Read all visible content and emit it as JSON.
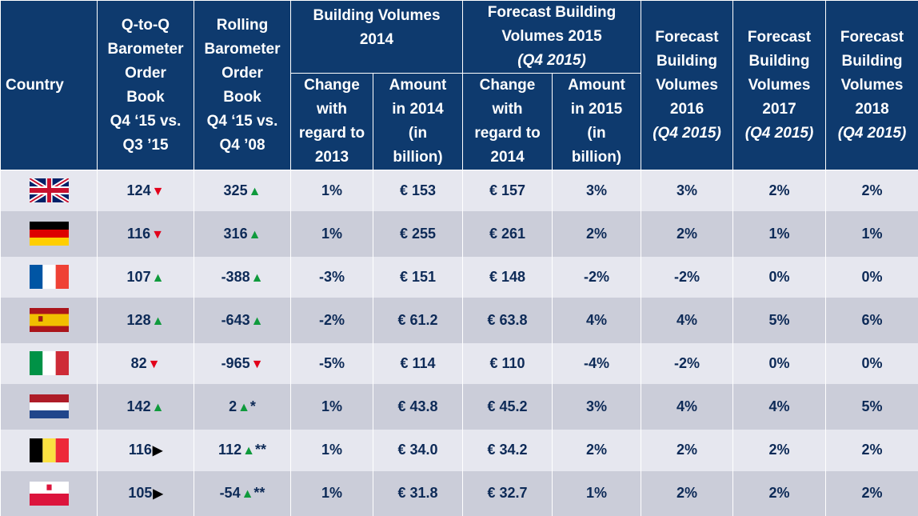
{
  "header": {
    "country": "Country",
    "qq": [
      "Q-to-Q",
      "Barometer",
      "Order",
      "Book",
      "Q4 ‘15 vs.",
      "Q3 ’15"
    ],
    "rolling": [
      "Rolling",
      "Barometer",
      "Order",
      "Book",
      "Q4 ‘15 vs.",
      "Q4 ’08"
    ],
    "bv2014": [
      "Building Volumes",
      "2014"
    ],
    "fbv2015": [
      "Forecast Building",
      "Volumes 2015"
    ],
    "fbv2015_sub": "(Q4 2015)",
    "change2013": [
      "Change",
      "with",
      "regard to",
      "2013"
    ],
    "amount2014": [
      "Amount",
      "in 2014",
      "(in",
      "billion)"
    ],
    "change2014": [
      "Change",
      "with",
      "regard to",
      "2014"
    ],
    "amount2015": [
      "Amount",
      "in 2015",
      "(in",
      "billion)"
    ],
    "f2016": [
      "Forecast",
      "Building",
      "Volumes",
      "2016"
    ],
    "f2017": [
      "Forecast",
      "Building",
      "Volumes",
      "2017"
    ],
    "f2018": [
      "Forecast",
      "Building",
      "Volumes",
      "2018"
    ],
    "q4_2015": "(Q4 2015)"
  },
  "rows": [
    {
      "flag": "uk-flag-icon",
      "qq": "124",
      "qq_arrow": "▼",
      "qq_dir": "down",
      "roll": "325",
      "roll_arrow": "▲",
      "roll_dir": "up",
      "roll_note": "",
      "c13": "1%",
      "a14": "€ 153",
      "c14": "€ 157",
      "a15": "3%",
      "f16": "3%",
      "f17": "2%",
      "f18": "2%"
    },
    {
      "flag": "germany-flag-icon",
      "qq": "116",
      "qq_arrow": "▼",
      "qq_dir": "down",
      "roll": "316",
      "roll_arrow": "▲",
      "roll_dir": "up",
      "roll_note": "",
      "c13": "1%",
      "a14": "€ 255",
      "c14": "€  261",
      "a15": "2%",
      "f16": "2%",
      "f17": "1%",
      "f18": "1%"
    },
    {
      "flag": "france-flag-icon",
      "qq": "107",
      "qq_arrow": "▲",
      "qq_dir": "up",
      "roll": "-388",
      "roll_arrow": "▲",
      "roll_dir": "up",
      "roll_note": "",
      "c13": "-3%",
      "a14": "€ 151",
      "c14": "€ 148",
      "a15": "-2%",
      "f16": "-2%",
      "f17": "0%",
      "f18": "0%"
    },
    {
      "flag": "spain-flag-icon",
      "qq": "128",
      "qq_arrow": "▲",
      "qq_dir": "up",
      "roll": "-643",
      "roll_arrow": "▲",
      "roll_dir": "up",
      "roll_note": "",
      "c13": "-2%",
      "a14": "€ 61.2",
      "c14": "€ 63.8",
      "a15": "4%",
      "f16": "4%",
      "f17": "5%",
      "f18": "6%"
    },
    {
      "flag": "italy-flag-icon",
      "qq": "82",
      "qq_arrow": "▼",
      "qq_dir": "down",
      "roll": "-965",
      "roll_arrow": "▼",
      "roll_dir": "down",
      "roll_note": "",
      "c13": "-5%",
      "a14": "€ 114",
      "c14": "€ 110",
      "a15": "-4%",
      "f16": "-2%",
      "f17": "0%",
      "f18": "0%"
    },
    {
      "flag": "netherlands-flag-icon",
      "qq": "142",
      "qq_arrow": "▲",
      "qq_dir": "up",
      "roll": "2",
      "roll_arrow": "▲",
      "roll_dir": "up",
      "roll_note": "*",
      "c13": "1%",
      "a14": "€ 43.8",
      "c14": "€ 45.2",
      "a15": "3%",
      "f16": "4%",
      "f17": "4%",
      "f18": "5%"
    },
    {
      "flag": "belgium-flag-icon",
      "qq": "116",
      "qq_arrow": "▶",
      "qq_dir": "right",
      "roll": "112",
      "roll_arrow": "▲",
      "roll_dir": "up",
      "roll_note": "**",
      "c13": "1%",
      "a14": "€ 34.0",
      "c14": "€ 34.2",
      "a15": "2%",
      "f16": "2%",
      "f17": "2%",
      "f18": "2%"
    },
    {
      "flag": "poland-flag-icon",
      "qq": "105",
      "qq_arrow": "▶",
      "qq_dir": "right",
      "roll": "-54",
      "roll_arrow": "▲",
      "roll_dir": "up",
      "roll_note": "**",
      "c13": "1%",
      "a14": "€ 31.8",
      "c14": "€ 32.7",
      "a15": "1%",
      "f16": "2%",
      "f17": "2%",
      "f18": "2%"
    }
  ],
  "colors": {
    "header_bg": "#0e3a6e",
    "row_light": "#e6e7ef",
    "row_dark": "#cbcdd9",
    "text": "#0d2a57",
    "up": "#0f9a3c",
    "down": "#e2001a"
  }
}
